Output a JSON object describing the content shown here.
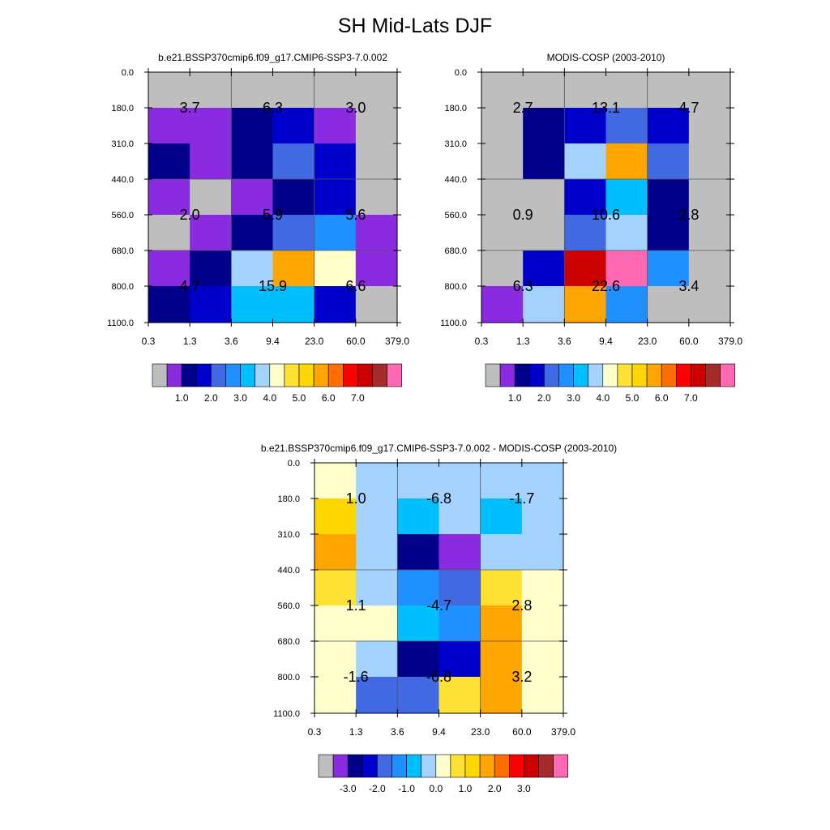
{
  "figure_title": "SH Mid-Lats DJF",
  "colors": {
    "missing": "#bebebe",
    "cloud_levels": [
      "#bebebe",
      "#8a2be2",
      "#00008b",
      "#0000cd",
      "#4169e1",
      "#1e90ff",
      "#00bfff",
      "#a3d2ff",
      "#ffffcc",
      "#ffe135",
      "#ffd700",
      "#ffa500",
      "#ff6f00",
      "#ff0000",
      "#cd0000",
      "#a52a2a",
      "#ff69b4"
    ],
    "diff_levels": [
      "#bebebe",
      "#8a2be2",
      "#00008b",
      "#0000cd",
      "#4169e1",
      "#1e90ff",
      "#00bfff",
      "#a3d2ff",
      "#ffffcc",
      "#ffe135",
      "#ffd700",
      "#ffa500",
      "#ff6f00",
      "#ff0000",
      "#cd0000",
      "#a52a2a",
      "#ff69b4"
    ]
  },
  "chart_data": [
    {
      "type": "heatmap",
      "title": "b.e21.BSSP370cmip6.f09_g17.CMIP6-SSP3-7.0.002",
      "x_ticks": [
        "0.3",
        "1.3",
        "3.6",
        "9.4",
        "23.0",
        "60.0",
        "379.0"
      ],
      "y_ticks": [
        "0.0",
        "180.0",
        "310.0",
        "440.0",
        "560.0",
        "680.0",
        "800.0",
        "1100.0"
      ],
      "cells": [
        [
          0,
          0,
          0,
          0,
          0,
          0
        ],
        [
          1,
          1,
          2,
          3,
          1,
          0
        ],
        [
          2,
          1,
          2,
          4,
          3,
          0
        ],
        [
          1,
          0,
          1,
          2,
          3,
          0
        ],
        [
          0,
          1,
          2,
          4,
          5,
          1
        ],
        [
          1,
          2,
          7,
          11,
          8,
          1
        ],
        [
          2,
          3,
          6,
          6,
          3,
          0
        ]
      ],
      "group_labels": [
        {
          "col": 0,
          "row": 0,
          "text": "3.7"
        },
        {
          "col": 1,
          "row": 0,
          "text": "6.3"
        },
        {
          "col": 2,
          "row": 0,
          "text": "3.0"
        },
        {
          "col": 0,
          "row": 1,
          "text": "2.0"
        },
        {
          "col": 1,
          "row": 1,
          "text": "5.9"
        },
        {
          "col": 2,
          "row": 1,
          "text": "5.6"
        },
        {
          "col": 0,
          "row": 2,
          "text": "4.7"
        },
        {
          "col": 1,
          "row": 2,
          "text": "15.9"
        },
        {
          "col": 2,
          "row": 2,
          "text": "6.6"
        }
      ],
      "colorbar_labels": [
        "1.0",
        "2.0",
        "3.0",
        "4.0",
        "5.0",
        "6.0",
        "7.0"
      ]
    },
    {
      "type": "heatmap",
      "title": "MODIS-COSP (2003-2010)",
      "x_ticks": [
        "0.3",
        "1.3",
        "3.6",
        "9.4",
        "23.0",
        "60.0",
        "379.0"
      ],
      "y_ticks": [
        "0.0",
        "180.0",
        "310.0",
        "440.0",
        "560.0",
        "680.0",
        "800.0",
        "1100.0"
      ],
      "cells": [
        [
          0,
          0,
          0,
          0,
          0,
          0
        ],
        [
          0,
          2,
          3,
          4,
          3,
          0
        ],
        [
          0,
          2,
          7,
          11,
          4,
          0
        ],
        [
          0,
          0,
          3,
          6,
          2,
          0
        ],
        [
          0,
          0,
          4,
          7,
          2,
          0
        ],
        [
          0,
          3,
          14,
          16,
          5,
          0
        ],
        [
          1,
          7,
          11,
          5,
          0,
          0
        ]
      ],
      "group_labels": [
        {
          "col": 0,
          "row": 0,
          "text": "2.7"
        },
        {
          "col": 1,
          "row": 0,
          "text": "13.1"
        },
        {
          "col": 2,
          "row": 0,
          "text": "4.7"
        },
        {
          "col": 0,
          "row": 1,
          "text": "0.9"
        },
        {
          "col": 1,
          "row": 1,
          "text": "10.6"
        },
        {
          "col": 2,
          "row": 1,
          "text": "2.8"
        },
        {
          "col": 0,
          "row": 2,
          "text": "6.3"
        },
        {
          "col": 1,
          "row": 2,
          "text": "22.6"
        },
        {
          "col": 2,
          "row": 2,
          "text": "3.4"
        }
      ],
      "colorbar_labels": [
        "1.0",
        "2.0",
        "3.0",
        "4.0",
        "5.0",
        "6.0",
        "7.0"
      ]
    },
    {
      "type": "heatmap",
      "title": "b.e21.BSSP370cmip6.f09_g17.CMIP6-SSP3-7.0.002 - MODIS-COSP (2003-2010)",
      "x_ticks": [
        "0.3",
        "1.3",
        "3.6",
        "9.4",
        "23.0",
        "60.0",
        "379.0"
      ],
      "y_ticks": [
        "0.0",
        "180.0",
        "310.0",
        "440.0",
        "560.0",
        "680.0",
        "800.0",
        "1100.0"
      ],
      "cells": [
        [
          8,
          7,
          7,
          7,
          7,
          7
        ],
        [
          10,
          7,
          6,
          7,
          6,
          7
        ],
        [
          11,
          7,
          2,
          1,
          7,
          7
        ],
        [
          9,
          7,
          5,
          4,
          9,
          8
        ],
        [
          8,
          8,
          6,
          5,
          11,
          8
        ],
        [
          8,
          7,
          2,
          3,
          11,
          8
        ],
        [
          8,
          4,
          4,
          9,
          11,
          8
        ]
      ],
      "group_labels": [
        {
          "col": 0,
          "row": 0,
          "text": "1.0"
        },
        {
          "col": 1,
          "row": 0,
          "text": "-6.8"
        },
        {
          "col": 2,
          "row": 0,
          "text": "-1.7"
        },
        {
          "col": 0,
          "row": 1,
          "text": "1.1"
        },
        {
          "col": 1,
          "row": 1,
          "text": "-4.7"
        },
        {
          "col": 2,
          "row": 1,
          "text": "2.8"
        },
        {
          "col": 0,
          "row": 2,
          "text": "-1.6"
        },
        {
          "col": 1,
          "row": 2,
          "text": "-6.8"
        },
        {
          "col": 2,
          "row": 2,
          "text": "3.2"
        }
      ],
      "colorbar_labels": [
        "-3.0",
        "-2.0",
        "-1.0",
        "0.0",
        "1.0",
        "2.0",
        "3.0"
      ]
    }
  ]
}
